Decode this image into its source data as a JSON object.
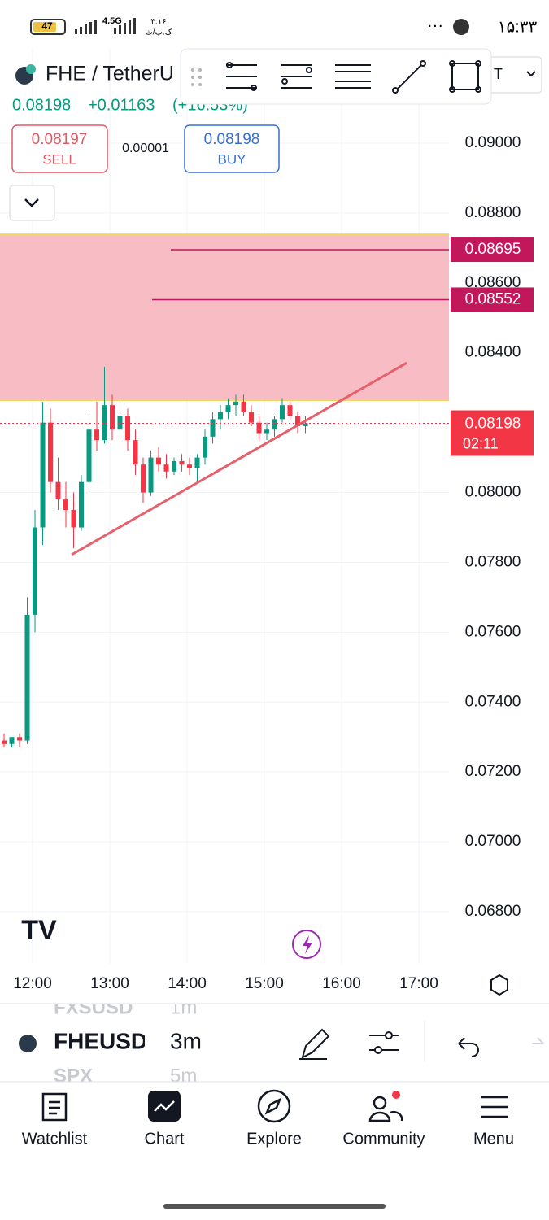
{
  "status_bar": {
    "battery": "47",
    "network": "4.5G",
    "speed_value": "۳.۱۶",
    "speed_unit": "ک.ب/ث",
    "more": "···",
    "time": "۱۵:۳۳"
  },
  "header": {
    "symbol": "FHE / TetherU",
    "dropdown": "T",
    "price": "0.08198",
    "change": "+0.01163",
    "change_percent": "(+16.53%)"
  },
  "trade": {
    "sell_price": "0.08197",
    "sell_label": "SELL",
    "spread": "0.00001",
    "buy_price": "0.08198",
    "buy_label": "BUY"
  },
  "chart_data": {
    "type": "candlestick",
    "up_color": "#089981",
    "down_color": "#f23645",
    "candles": [
      [
        0.0729,
        0.0731,
        0.0727,
        0.0728
      ],
      [
        0.0728,
        0.073,
        0.0727,
        0.073
      ],
      [
        0.073,
        0.0731,
        0.0727,
        0.0729
      ],
      [
        0.0729,
        0.077,
        0.0728,
        0.0765
      ],
      [
        0.0765,
        0.0795,
        0.076,
        0.079
      ],
      [
        0.079,
        0.0826,
        0.0785,
        0.082
      ],
      [
        0.082,
        0.0824,
        0.08,
        0.0803
      ],
      [
        0.0803,
        0.081,
        0.0795,
        0.0798
      ],
      [
        0.0798,
        0.0803,
        0.079,
        0.0795
      ],
      [
        0.0795,
        0.08,
        0.0784,
        0.079
      ],
      [
        0.079,
        0.0805,
        0.0789,
        0.0803
      ],
      [
        0.0803,
        0.0822,
        0.08,
        0.0818
      ],
      [
        0.0818,
        0.0826,
        0.0812,
        0.0815
      ],
      [
        0.0815,
        0.0836,
        0.0814,
        0.0825
      ],
      [
        0.0825,
        0.0828,
        0.0815,
        0.0818
      ],
      [
        0.0818,
        0.0827,
        0.0815,
        0.0822
      ],
      [
        0.0822,
        0.0824,
        0.0812,
        0.0815
      ],
      [
        0.0815,
        0.0818,
        0.0805,
        0.0808
      ],
      [
        0.0808,
        0.081,
        0.0797,
        0.08
      ],
      [
        0.08,
        0.0812,
        0.0799,
        0.081
      ],
      [
        0.081,
        0.0813,
        0.0806,
        0.0808
      ],
      [
        0.0808,
        0.0811,
        0.0804,
        0.0806
      ],
      [
        0.0806,
        0.081,
        0.0805,
        0.0809
      ],
      [
        0.0809,
        0.0811,
        0.0806,
        0.0808
      ],
      [
        0.0808,
        0.081,
        0.0805,
        0.0807
      ],
      [
        0.0807,
        0.0811,
        0.0803,
        0.081
      ],
      [
        0.081,
        0.0818,
        0.0808,
        0.0816
      ],
      [
        0.0816,
        0.0823,
        0.0814,
        0.0821
      ],
      [
        0.0821,
        0.0825,
        0.0818,
        0.0823
      ],
      [
        0.0823,
        0.0827,
        0.0821,
        0.0825
      ],
      [
        0.0825,
        0.0828,
        0.0822,
        0.0826
      ],
      [
        0.0826,
        0.0828,
        0.0822,
        0.0823
      ],
      [
        0.0823,
        0.0825,
        0.0819,
        0.082
      ],
      [
        0.082,
        0.0822,
        0.0815,
        0.0817
      ],
      [
        0.0817,
        0.082,
        0.0815,
        0.0818
      ],
      [
        0.0818,
        0.0822,
        0.0816,
        0.0821
      ],
      [
        0.0821,
        0.0827,
        0.082,
        0.0825
      ],
      [
        0.0825,
        0.0826,
        0.0821,
        0.0822
      ],
      [
        0.0822,
        0.0823,
        0.0817,
        0.0819
      ],
      [
        0.0819,
        0.0822,
        0.0817,
        0.08198
      ]
    ],
    "ylim": [
      0.068,
      0.092
    ],
    "yticks": [
      {
        "value": 0.068,
        "label": "0.06800"
      },
      {
        "value": 0.07,
        "label": "0.07000"
      },
      {
        "value": 0.072,
        "label": "0.07200"
      },
      {
        "value": 0.074,
        "label": "0.07400"
      },
      {
        "value": 0.076,
        "label": "0.07600"
      },
      {
        "value": 0.078,
        "label": "0.07800"
      },
      {
        "value": 0.08,
        "label": "0.08000"
      },
      {
        "value": 0.084,
        "label": "0.08400"
      },
      {
        "value": 0.086,
        "label": "0.08600"
      },
      {
        "value": 0.088,
        "label": "0.08800"
      },
      {
        "value": 0.09,
        "label": "0.09000"
      }
    ],
    "time_labels": [
      "12:00",
      "13:00",
      "14:00",
      "15:00",
      "16:00",
      "17:00"
    ],
    "zone": {
      "low": 0.08264,
      "high": 0.08739,
      "color": "#f7bcc4"
    },
    "price_lines": [
      {
        "value": 0.08695,
        "label": "0.08695"
      },
      {
        "value": 0.08552,
        "label": "0.08552"
      }
    ],
    "last_price": {
      "value": 0.08198,
      "label": "0.08198",
      "countdown": "02:11"
    },
    "trendline": {
      "start": 0.07822,
      "end": 0.08371,
      "color": "#e8606c"
    }
  },
  "symbol_bar": {
    "symbols": [
      "FXSUSD",
      "FHEUSD",
      "SPX"
    ],
    "intervals": [
      "1m",
      "3m",
      "5m"
    ]
  },
  "nav": [
    "Watchlist",
    "Chart",
    "Explore",
    "Community",
    "Menu"
  ]
}
